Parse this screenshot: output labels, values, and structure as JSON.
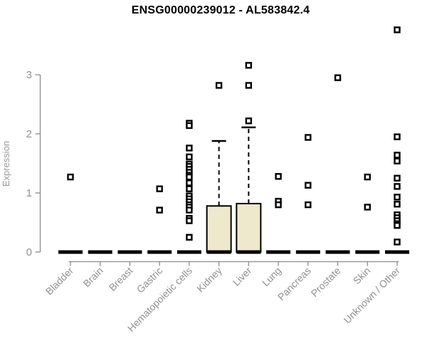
{
  "page": {
    "background": "#FFFFFF"
  },
  "chart_data": {
    "type": "boxplot",
    "title": "ENSG00000239012 - AL583842.4",
    "xlabel": "",
    "ylabel": "Expression",
    "yticks": [
      0,
      1,
      2,
      3
    ],
    "ylim": [
      0,
      3.9
    ],
    "grid": false,
    "legend": false,
    "colors": {
      "box_fill": "#EEE8CD",
      "box_stroke": "#000000",
      "median_color": "#000000",
      "whisker_color": "#000000",
      "outlier_color": "#000000",
      "axis_color": "#8C8C8C",
      "tick_label_color": "#919191",
      "axis_label_color": "#999999",
      "title_color": "#000000"
    },
    "categories": [
      "Bladder",
      "Brain",
      "Breast",
      "Gastric",
      "Hematopoietic cells",
      "Kidney",
      "Liver",
      "Lung",
      "Pancreas",
      "Prostate",
      "Skin",
      "Unknown / Other"
    ],
    "series": [
      {
        "category": "Bladder",
        "q1": 0,
        "median": 0,
        "q3": 0,
        "whisker_low": 0,
        "whisker_high": 0,
        "outliers": [
          1.27
        ]
      },
      {
        "category": "Brain",
        "q1": 0,
        "median": 0,
        "q3": 0,
        "whisker_low": 0,
        "whisker_high": 0,
        "outliers": []
      },
      {
        "category": "Breast",
        "q1": 0,
        "median": 0,
        "q3": 0,
        "whisker_low": 0,
        "whisker_high": 0,
        "outliers": []
      },
      {
        "category": "Gastric",
        "q1": 0,
        "median": 0,
        "q3": 0,
        "whisker_low": 0,
        "whisker_high": 0,
        "outliers": [
          1.07,
          0.71
        ]
      },
      {
        "category": "Hematopoietic cells",
        "q1": 0,
        "median": 0,
        "q3": 0,
        "whisker_low": 0,
        "whisker_high": 0,
        "outliers": [
          2.18,
          2.14,
          1.76,
          1.61,
          1.49,
          1.45,
          1.4,
          1.35,
          1.3,
          1.27,
          1.17,
          1.07,
          0.95,
          0.9,
          0.85,
          0.8,
          0.76,
          0.71,
          0.57,
          0.53,
          0.25
        ]
      },
      {
        "category": "Kidney",
        "q1": 0,
        "median": 0,
        "q3": 0.78,
        "whisker_low": 0,
        "whisker_high": 1.88,
        "outliers": [
          2.82
        ]
      },
      {
        "category": "Liver",
        "q1": 0,
        "median": 0,
        "q3": 0.82,
        "whisker_low": 0,
        "whisker_high": 2.11,
        "outliers": [
          3.16,
          2.82,
          2.22
        ]
      },
      {
        "category": "Lung",
        "q1": 0,
        "median": 0,
        "q3": 0,
        "whisker_low": 0,
        "whisker_high": 0,
        "outliers": [
          1.28,
          0.86,
          0.8
        ]
      },
      {
        "category": "Pancreas",
        "q1": 0,
        "median": 0,
        "q3": 0,
        "whisker_low": 0,
        "whisker_high": 0,
        "outliers": [
          1.94,
          1.13,
          0.8
        ]
      },
      {
        "category": "Prostate",
        "q1": 0,
        "median": 0,
        "q3": 0,
        "whisker_low": 0,
        "whisker_high": 0,
        "outliers": [
          2.95
        ]
      },
      {
        "category": "Skin",
        "q1": 0,
        "median": 0,
        "q3": 0,
        "whisker_low": 0,
        "whisker_high": 0,
        "outliers": [
          1.27,
          0.76
        ]
      },
      {
        "category": "Unknown / Other",
        "q1": 0,
        "median": 0,
        "q3": 0,
        "whisker_low": 0,
        "whisker_high": 0,
        "outliers": [
          3.76,
          1.95,
          1.64,
          1.54,
          1.25,
          1.11,
          0.93,
          0.81,
          0.63,
          0.58,
          0.53,
          0.48,
          0.45,
          0.17
        ]
      }
    ]
  }
}
